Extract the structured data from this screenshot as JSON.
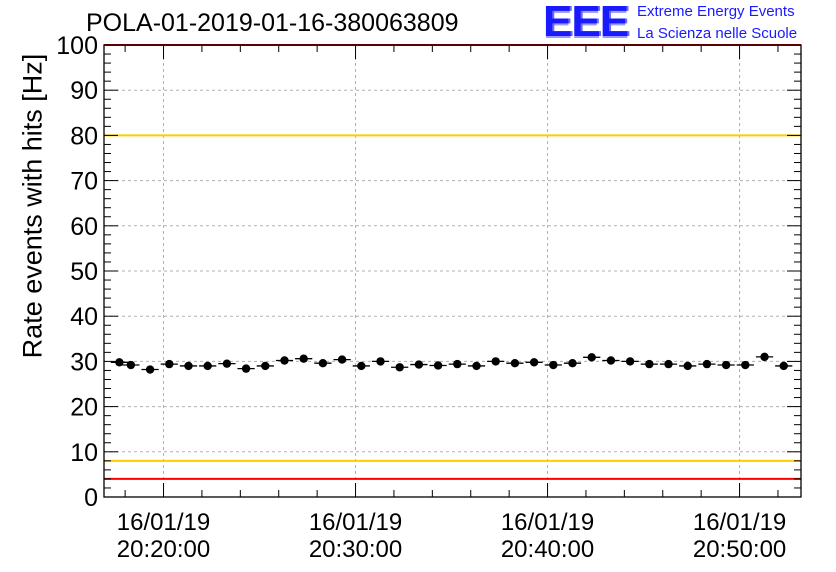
{
  "chart_data": {
    "type": "scatter",
    "title": "POLA-01-2019-01-16-380063809",
    "ylabel": "Rate events with hits [Hz]",
    "xlabel": "",
    "ylim": [
      0,
      100
    ],
    "y_ticks": [
      "0",
      "10",
      "20",
      "30",
      "40",
      "50",
      "60",
      "70",
      "80",
      "90",
      "100"
    ],
    "x_range_minutes": [
      16.9,
      53.2
    ],
    "x_ticks": [
      {
        "minute": 20,
        "date": "16/01/19",
        "time": "20:20:00"
      },
      {
        "minute": 30,
        "date": "16/01/19",
        "time": "20:30:00"
      },
      {
        "minute": 40,
        "date": "16/01/19",
        "time": "20:40:00"
      },
      {
        "minute": 50,
        "date": "16/01/19",
        "time": "20:50:00"
      }
    ],
    "grid": true,
    "reference_lines": [
      {
        "y": 100,
        "color": "#ff0000"
      },
      {
        "y": 80,
        "color": "#ffcc00"
      },
      {
        "y": 8,
        "color": "#ffcc00"
      },
      {
        "y": 4,
        "color": "#ff0000"
      }
    ],
    "x": [
      17.7,
      18.3,
      19.3,
      20.3,
      21.3,
      22.3,
      23.3,
      24.3,
      25.3,
      26.3,
      27.3,
      28.3,
      29.3,
      30.3,
      31.3,
      32.3,
      33.3,
      34.3,
      35.3,
      36.3,
      37.3,
      38.3,
      39.3,
      40.3,
      41.3,
      42.3,
      43.3,
      44.3,
      45.3,
      46.3,
      47.3,
      48.3,
      49.3,
      50.3,
      51.3,
      52.3
    ],
    "values": [
      29.8,
      29.2,
      28.2,
      29.4,
      29.0,
      29.0,
      29.5,
      28.4,
      29.0,
      30.2,
      30.6,
      29.6,
      30.4,
      29.0,
      30.0,
      28.7,
      29.3,
      29.1,
      29.4,
      29.0,
      30.0,
      29.6,
      29.8,
      29.2,
      29.6,
      30.9,
      30.2,
      30.0,
      29.4,
      29.4,
      29.0,
      29.4,
      29.2,
      29.2,
      31.0,
      29.0
    ]
  },
  "logo": {
    "mark": "EEE",
    "line1": "Extreme Energy Events",
    "line2": "La Scienza nelle Scuole"
  }
}
